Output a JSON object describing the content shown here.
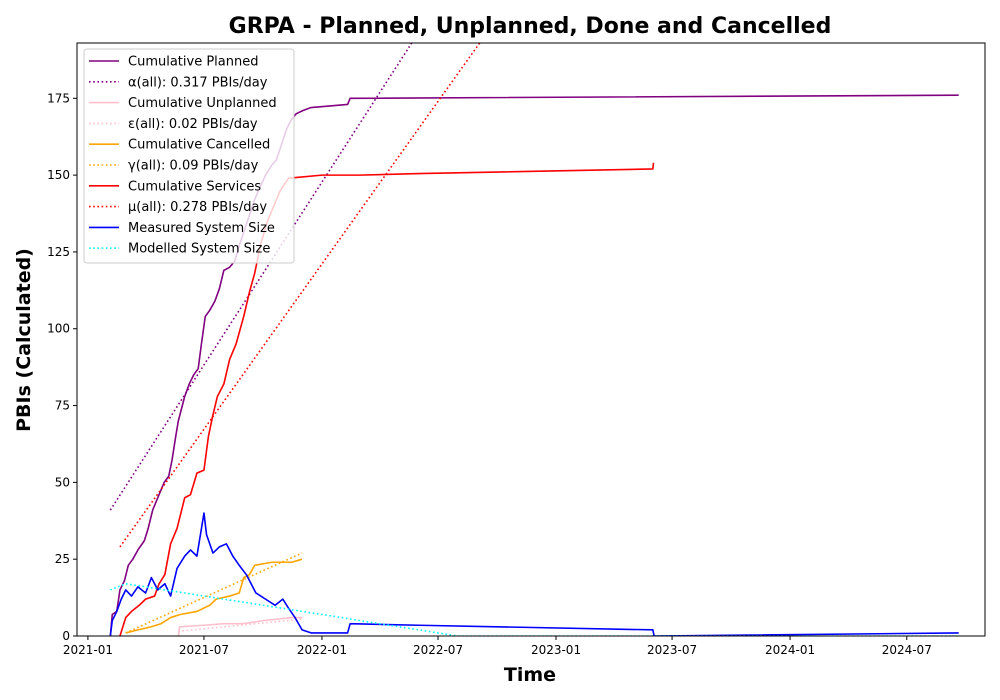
{
  "chart_data": {
    "type": "line",
    "title": "GRPA - Planned, Unplanned, Done  and Cancelled",
    "xlabel": "Time",
    "ylabel": "PBIs (Calculated)",
    "xlim": [
      "2020-12-15",
      "2024-10-31"
    ],
    "ylim": [
      0,
      193
    ],
    "x_ticks": [
      "2021-01",
      "2021-07",
      "2022-01",
      "2022-07",
      "2023-01",
      "2023-07",
      "2024-01",
      "2024-07"
    ],
    "y_ticks": [
      0,
      25,
      50,
      75,
      100,
      125,
      150,
      175
    ],
    "grid": false,
    "legend_position": "top-left",
    "series": [
      {
        "name": "Cumulative Planned",
        "color": "#800080",
        "style": "solid",
        "points": [
          [
            "2021-02-05",
            0
          ],
          [
            "2021-02-08",
            7
          ],
          [
            "2021-02-15",
            8
          ],
          [
            "2021-02-20",
            15
          ],
          [
            "2021-02-27",
            18
          ],
          [
            "2021-03-05",
            23
          ],
          [
            "2021-03-12",
            25
          ],
          [
            "2021-03-20",
            28
          ],
          [
            "2021-03-30",
            31
          ],
          [
            "2021-04-05",
            35
          ],
          [
            "2021-04-12",
            41
          ],
          [
            "2021-04-20",
            45
          ],
          [
            "2021-04-30",
            50
          ],
          [
            "2021-05-07",
            52
          ],
          [
            "2021-05-12",
            57
          ],
          [
            "2021-05-18",
            65
          ],
          [
            "2021-05-22",
            70
          ],
          [
            "2021-05-27",
            74
          ],
          [
            "2021-06-01",
            78
          ],
          [
            "2021-06-08",
            82
          ],
          [
            "2021-06-15",
            85
          ],
          [
            "2021-06-22",
            87
          ],
          [
            "2021-06-27",
            95
          ],
          [
            "2021-07-03",
            104
          ],
          [
            "2021-07-10",
            106
          ],
          [
            "2021-07-18",
            109
          ],
          [
            "2021-07-25",
            113
          ],
          [
            "2021-08-01",
            119
          ],
          [
            "2021-08-10",
            120
          ],
          [
            "2021-08-18",
            122
          ],
          [
            "2021-08-25",
            127
          ],
          [
            "2021-09-02",
            132
          ],
          [
            "2021-09-10",
            137
          ],
          [
            "2021-09-18",
            142
          ],
          [
            "2021-09-26",
            146
          ],
          [
            "2021-10-05",
            150
          ],
          [
            "2021-10-14",
            153
          ],
          [
            "2021-10-22",
            155
          ],
          [
            "2021-10-30",
            160
          ],
          [
            "2021-11-07",
            165
          ],
          [
            "2021-11-14",
            168
          ],
          [
            "2021-11-22",
            170
          ],
          [
            "2021-12-02",
            171
          ],
          [
            "2021-12-15",
            172
          ],
          [
            "2022-02-10",
            173
          ],
          [
            "2022-02-14",
            175
          ],
          [
            "2024-09-20",
            176
          ]
        ]
      },
      {
        "name": "α(all): 0.317 PBIs/day",
        "color": "#800080",
        "style": "dotted",
        "points": [
          [
            "2021-02-05",
            41
          ],
          [
            "2022-05-21",
            193
          ]
        ]
      },
      {
        "name": "Cumulative Unplanned",
        "color": "#ffc0cb",
        "style": "solid",
        "points": [
          [
            "2021-05-22",
            0
          ],
          [
            "2021-05-24",
            3
          ],
          [
            "2021-07-01",
            3.5
          ],
          [
            "2021-08-01",
            4
          ],
          [
            "2021-09-01",
            4
          ],
          [
            "2021-10-01",
            5
          ],
          [
            "2021-11-15",
            6
          ],
          [
            "2021-12-01",
            6
          ]
        ]
      },
      {
        "name": "ε(all): 0.02 PBIs/day",
        "color": "#ffc0cb",
        "style": "dotted",
        "points": [
          [
            "2021-05-22",
            1.5
          ],
          [
            "2021-12-01",
            5.5
          ]
        ]
      },
      {
        "name": "Cumulative Cancelled",
        "color": "#ffa500",
        "style": "solid",
        "points": [
          [
            "2021-03-01",
            1
          ],
          [
            "2021-03-20",
            2
          ],
          [
            "2021-04-10",
            3
          ],
          [
            "2021-04-25",
            4
          ],
          [
            "2021-05-10",
            6
          ],
          [
            "2021-05-25",
            7
          ],
          [
            "2021-06-20",
            8
          ],
          [
            "2021-07-10",
            10
          ],
          [
            "2021-07-20",
            12
          ],
          [
            "2021-08-10",
            13
          ],
          [
            "2021-08-25",
            14
          ],
          [
            "2021-09-01",
            19
          ],
          [
            "2021-09-10",
            20
          ],
          [
            "2021-09-18",
            23
          ],
          [
            "2021-10-15",
            24
          ],
          [
            "2021-11-15",
            24
          ],
          [
            "2021-12-01",
            25
          ]
        ]
      },
      {
        "name": "γ(all): 0.09 PBIs/day",
        "color": "#ffa500",
        "style": "dotted",
        "points": [
          [
            "2021-03-01",
            1
          ],
          [
            "2021-12-01",
            27
          ]
        ]
      },
      {
        "name": "Cumulative Services",
        "color": "#ff0000",
        "style": "solid",
        "points": [
          [
            "2021-02-20",
            0
          ],
          [
            "2021-03-01",
            6
          ],
          [
            "2021-03-10",
            8
          ],
          [
            "2021-03-22",
            10
          ],
          [
            "2021-04-01",
            12
          ],
          [
            "2021-04-15",
            13
          ],
          [
            "2021-04-22",
            17
          ],
          [
            "2021-05-01",
            20
          ],
          [
            "2021-05-10",
            30
          ],
          [
            "2021-05-20",
            35
          ],
          [
            "2021-06-01",
            45
          ],
          [
            "2021-06-10",
            46
          ],
          [
            "2021-06-20",
            53
          ],
          [
            "2021-07-01",
            54
          ],
          [
            "2021-07-08",
            65
          ],
          [
            "2021-07-15",
            72
          ],
          [
            "2021-07-22",
            78
          ],
          [
            "2021-08-01",
            82
          ],
          [
            "2021-08-10",
            90
          ],
          [
            "2021-08-20",
            95
          ],
          [
            "2021-09-01",
            104
          ],
          [
            "2021-09-10",
            112
          ],
          [
            "2021-09-18",
            118
          ],
          [
            "2021-09-28",
            128
          ],
          [
            "2021-10-08",
            135
          ],
          [
            "2021-10-18",
            140
          ],
          [
            "2021-10-28",
            145
          ],
          [
            "2021-11-10",
            149
          ],
          [
            "2022-01-01",
            150
          ],
          [
            "2022-03-01",
            150
          ],
          [
            "2022-06-01",
            150.5
          ],
          [
            "2023-06-01",
            152
          ],
          [
            "2023-06-02",
            154
          ]
        ]
      },
      {
        "name": "μ(all): 0.278 PBIs/day",
        "color": "#ff0000",
        "style": "dotted",
        "points": [
          [
            "2021-02-20",
            29
          ],
          [
            "2022-09-04",
            193
          ]
        ]
      },
      {
        "name": "Measured System Size",
        "color": "#0000ff",
        "style": "solid",
        "points": [
          [
            "2021-02-05",
            0
          ],
          [
            "2021-02-08",
            5
          ],
          [
            "2021-02-15",
            8
          ],
          [
            "2021-02-22",
            12
          ],
          [
            "2021-03-01",
            15
          ],
          [
            "2021-03-10",
            13
          ],
          [
            "2021-03-20",
            16
          ],
          [
            "2021-04-01",
            14
          ],
          [
            "2021-04-10",
            19
          ],
          [
            "2021-04-20",
            15
          ],
          [
            "2021-05-01",
            17
          ],
          [
            "2021-05-10",
            13
          ],
          [
            "2021-05-20",
            22
          ],
          [
            "2021-06-01",
            26
          ],
          [
            "2021-06-10",
            28
          ],
          [
            "2021-06-20",
            26
          ],
          [
            "2021-07-01",
            40
          ],
          [
            "2021-07-05",
            33
          ],
          [
            "2021-07-15",
            27
          ],
          [
            "2021-07-25",
            29
          ],
          [
            "2021-08-05",
            30
          ],
          [
            "2021-08-15",
            26
          ],
          [
            "2021-08-25",
            23
          ],
          [
            "2021-09-05",
            20
          ],
          [
            "2021-09-20",
            14
          ],
          [
            "2021-10-05",
            12
          ],
          [
            "2021-10-20",
            10
          ],
          [
            "2021-11-01",
            12
          ],
          [
            "2021-11-10",
            9
          ],
          [
            "2021-11-20",
            6
          ],
          [
            "2021-12-01",
            2
          ],
          [
            "2021-12-15",
            1
          ],
          [
            "2022-01-15",
            1
          ],
          [
            "2022-02-10",
            1
          ],
          [
            "2022-02-14",
            4
          ],
          [
            "2022-06-01",
            3.5
          ],
          [
            "2023-06-01",
            2
          ],
          [
            "2023-06-03",
            0
          ],
          [
            "2024-09-20",
            1
          ]
        ]
      },
      {
        "name": "Modelled System Size",
        "color": "#00ffff",
        "style": "dotted",
        "points": [
          [
            "2021-02-05",
            15
          ],
          [
            "2021-03-01",
            17
          ],
          [
            "2021-04-01",
            16
          ],
          [
            "2021-05-01",
            15
          ],
          [
            "2021-06-01",
            14
          ],
          [
            "2021-07-01",
            13
          ],
          [
            "2021-08-01",
            12
          ],
          [
            "2021-09-01",
            11
          ],
          [
            "2021-10-01",
            10
          ],
          [
            "2021-11-01",
            9
          ],
          [
            "2021-12-01",
            8
          ],
          [
            "2022-01-01",
            7
          ],
          [
            "2022-02-01",
            6
          ],
          [
            "2022-03-01",
            5
          ],
          [
            "2022-04-01",
            4
          ],
          [
            "2022-05-01",
            3
          ],
          [
            "2022-06-01",
            2
          ],
          [
            "2022-07-01",
            1
          ],
          [
            "2022-08-01",
            0
          ],
          [
            "2024-09-20",
            0
          ]
        ]
      }
    ]
  }
}
